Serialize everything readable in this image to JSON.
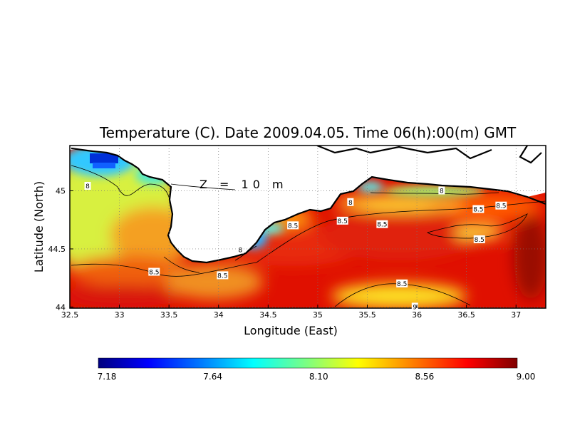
{
  "chart_data": {
    "type": "heatmap",
    "title": "Temperature (C). Date 2009.04.05. Time 06(h):00(m) GMT",
    "xlabel": "Longitude (East)",
    "ylabel": "Latitude (North)",
    "annotation": "Z = 10 m",
    "x_ticks": [
      "32.5",
      "33",
      "33.5",
      "34",
      "34.5",
      "35",
      "35.5",
      "36",
      "36.5",
      "37"
    ],
    "y_ticks": [
      "44",
      "44.5",
      "45"
    ],
    "xlim": [
      32.5,
      37.3
    ],
    "ylim": [
      43.99,
      45.39
    ],
    "grid": true,
    "colorbar": {
      "min": 7.18,
      "max": 9.0,
      "ticks": [
        "7.18",
        "7.64",
        "8.10",
        "8.56",
        "9.00"
      ],
      "colors": [
        "#00007f",
        "#0000ff",
        "#007fff",
        "#00ffff",
        "#7fff7f",
        "#ffff00",
        "#ff7f00",
        "#ff0000",
        "#7f0000"
      ]
    },
    "contour_labels": [
      {
        "text": "8",
        "lon": 32.68,
        "lat": 45.04
      },
      {
        "text": "8",
        "lon": 34.22,
        "lat": 44.49
      },
      {
        "text": "8",
        "lon": 35.33,
        "lat": 44.9
      },
      {
        "text": "8",
        "lon": 36.25,
        "lat": 45.0
      },
      {
        "text": "8.5",
        "lon": 33.35,
        "lat": 44.3
      },
      {
        "text": "8.5",
        "lon": 34.04,
        "lat": 44.27
      },
      {
        "text": "8.5",
        "lon": 34.75,
        "lat": 44.7
      },
      {
        "text": "8.5",
        "lon": 35.25,
        "lat": 44.74
      },
      {
        "text": "8.5",
        "lon": 35.65,
        "lat": 44.71
      },
      {
        "text": "8.5",
        "lon": 36.62,
        "lat": 44.84
      },
      {
        "text": "8.5",
        "lon": 36.85,
        "lat": 44.87
      },
      {
        "text": "8.5",
        "lon": 36.63,
        "lat": 44.58
      },
      {
        "text": "8.5",
        "lon": 35.85,
        "lat": 44.2
      },
      {
        "text": "9",
        "lon": 35.98,
        "lat": 44.0
      }
    ]
  }
}
